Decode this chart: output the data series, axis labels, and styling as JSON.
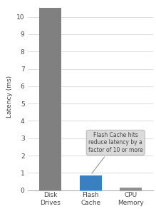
{
  "categories": [
    "Disk\nDrives",
    "Flash\nCache",
    "CPU\nMemory"
  ],
  "values": [
    10.5,
    0.85,
    0.15
  ],
  "bar_colors": [
    "#808080",
    "#3a7fc1",
    "#909090"
  ],
  "ylabel": "Latency (ms)",
  "ylim": [
    0,
    10.8
  ],
  "yticks": [
    0,
    1,
    2,
    3,
    4,
    5,
    6,
    7,
    8,
    9,
    10
  ],
  "annotation_text": "Flash Cache hits\nreduce latency by a\nfactor of 10 or more",
  "annotation_facecolor": "#d9d9d9",
  "annotation_edgecolor": "#aaaaaa",
  "annotation_fontsize": 5.5,
  "background_color": "#ffffff",
  "grid_color": "#d0d0d0",
  "bar_width": 0.55,
  "tick_fontsize": 6.5,
  "ylabel_fontsize": 6.5,
  "xlim": [
    -0.55,
    2.55
  ]
}
